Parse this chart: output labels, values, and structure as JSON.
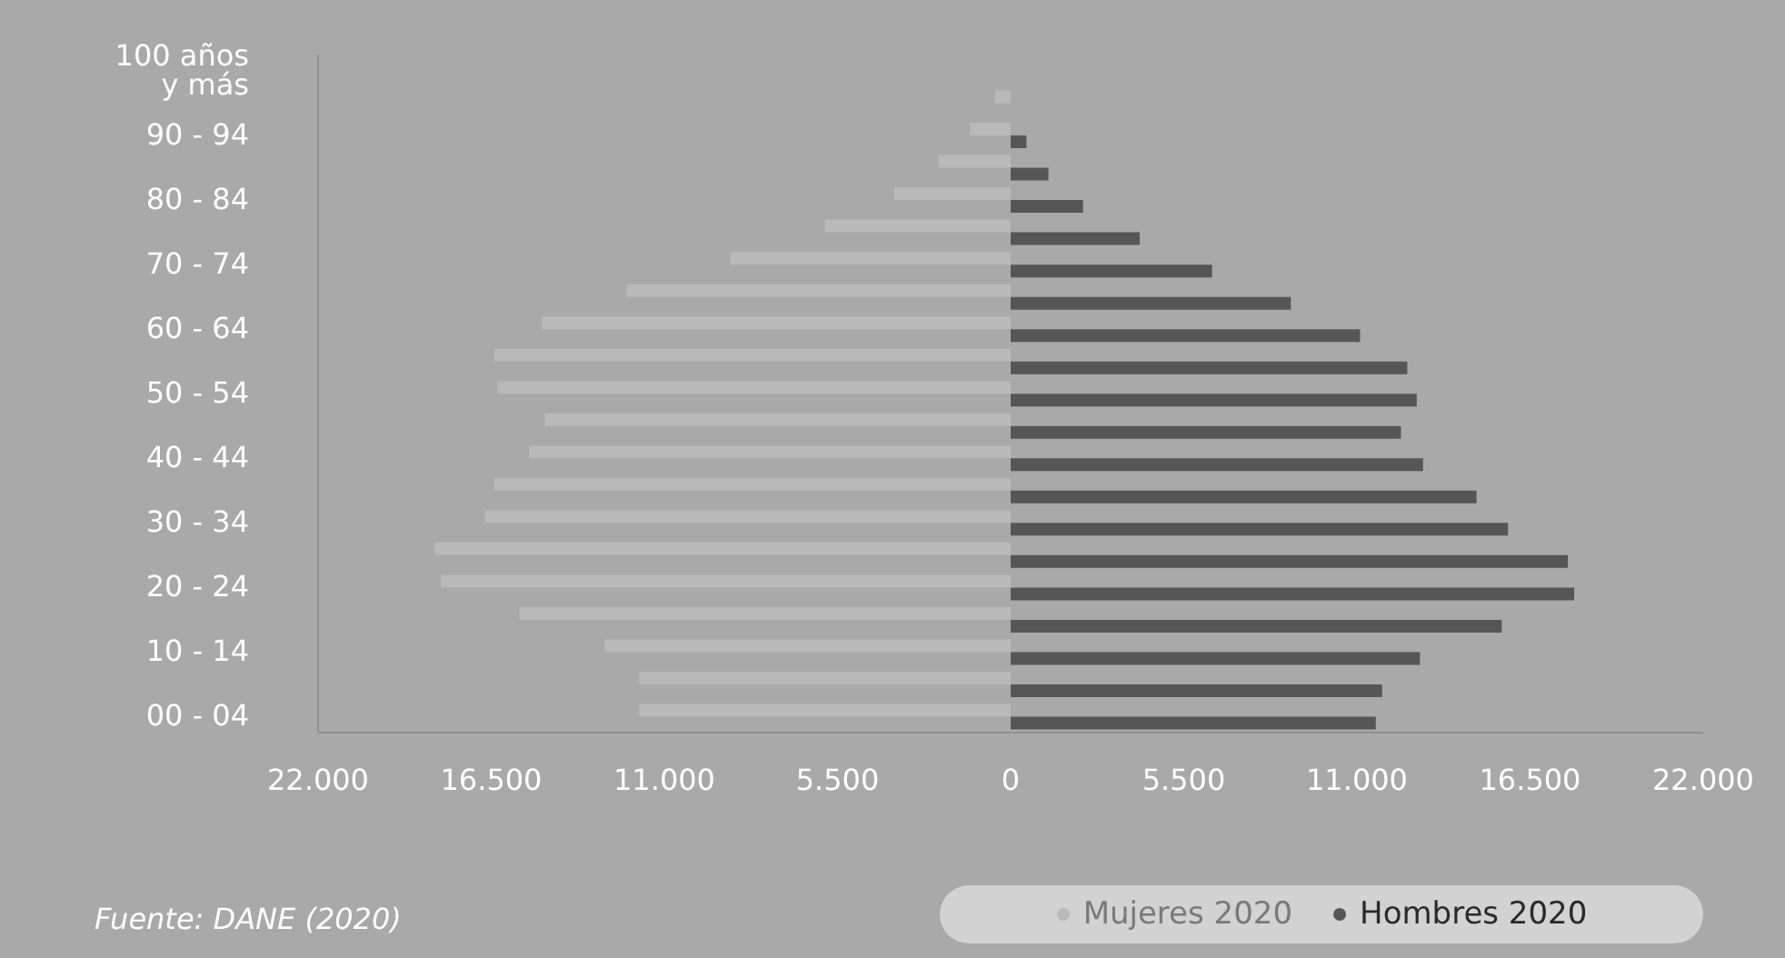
{
  "chart_data": {
    "type": "bar",
    "orientation": "horizontal",
    "categories": [
      "100 años y más",
      null,
      "90 - 94",
      null,
      "80 - 84",
      null,
      "70 - 74",
      null,
      "60 - 64",
      null,
      "50 - 54",
      null,
      "40 - 44",
      null,
      "30 - 34",
      null,
      "20 - 24",
      null,
      "10 - 14",
      null,
      "00 - 04"
    ],
    "series": [
      {
        "name": "Mujeres 2020",
        "color": "#b9b9b9",
        "values": [
          0,
          -500,
          -1300,
          -2300,
          -3700,
          -5900,
          -8900,
          -12200,
          -14900,
          -16400,
          -16300,
          -14800,
          -15300,
          -16400,
          -16700,
          -18300,
          -18100,
          -15600,
          -12900,
          -11800,
          -11800
        ]
      },
      {
        "name": "Hombres 2020",
        "color": "#565656",
        "values": [
          0,
          0,
          500,
          1200,
          2300,
          4100,
          6400,
          8900,
          11100,
          12600,
          12900,
          12400,
          13100,
          14800,
          15800,
          17700,
          17900,
          15600,
          13000,
          11800,
          11600
        ]
      }
    ],
    "xlim": [
      -22000,
      22000
    ],
    "xticks": [
      {
        "value": -22000,
        "label": "22.000"
      },
      {
        "value": -16500,
        "label": "16.500"
      },
      {
        "value": -11000,
        "label": "11.000"
      },
      {
        "value": -5500,
        "label": "5.500"
      },
      0,
      {
        "value": 5500,
        "label": "5.500"
      },
      {
        "value": 11000,
        "label": "11.000"
      },
      {
        "value": 16500,
        "label": "16.500"
      },
      {
        "value": 22000,
        "label": "22.000"
      }
    ],
    "legend": "bottom right",
    "annotations": [
      "Fuente: DANE (2020)"
    ]
  }
}
